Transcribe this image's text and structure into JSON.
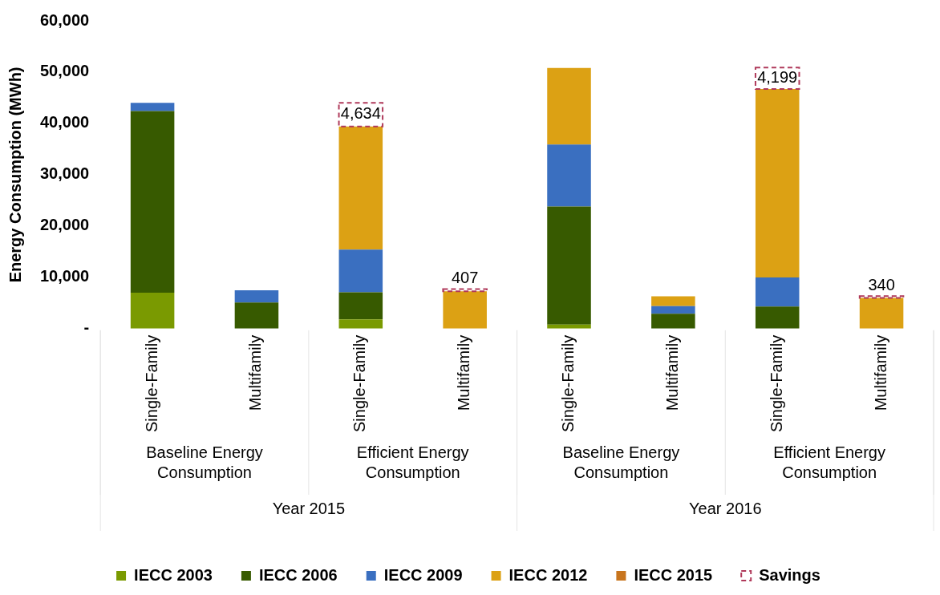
{
  "chart_data": {
    "type": "bar",
    "stacked": true,
    "ylabel": "Energy Consumption (MWh)",
    "categories": [
      "Single-Family",
      "Multifamily",
      "Single-Family",
      "Multifamily",
      "Single-Family",
      "Multifamily",
      "Single-Family",
      "Multifamily"
    ],
    "annotations": [
      "Baseline Energy Consumption",
      "Efficient Energy Consumption",
      "Baseline Energy Consumption",
      "Efficient Energy Consumption",
      "Year 2015",
      "Year 2016"
    ],
    "series": [
      {
        "name": "IECC 2003",
        "color": "#7a9a01",
        "values": [
          7000,
          null,
          1800,
          null,
          800,
          null,
          null,
          null
        ]
      },
      {
        "name": "IECC 2006",
        "color": "#375a00",
        "values": [
          35400,
          5100,
          5300,
          null,
          23000,
          2900,
          4300,
          null
        ]
      },
      {
        "name": "IECC 2009",
        "color": "#3a6fc0",
        "values": [
          1600,
          2400,
          8300,
          null,
          12100,
          1500,
          5700,
          null
        ]
      },
      {
        "name": "IECC 2012",
        "color": "#dca114",
        "values": [
          null,
          null,
          24000,
          7300,
          14900,
          1900,
          36700,
          6000
        ]
      },
      {
        "name": "IECC 2015",
        "color": "#c8751e",
        "values": [
          null,
          null,
          null,
          null,
          null,
          null,
          null,
          null
        ]
      },
      {
        "name": "Savings",
        "color": "#b03a5b",
        "line_style": "dashed",
        "values": [
          null,
          null,
          4634,
          407,
          null,
          null,
          4199,
          340
        ],
        "value_labels": [
          null,
          null,
          "4,634",
          "407",
          null,
          null,
          "4,199",
          "340"
        ]
      }
    ],
    "ylim": [
      0,
      60000
    ],
    "yticks": [
      {
        "value": 0,
        "label": "-"
      },
      {
        "value": 10000,
        "label": "10,000"
      },
      {
        "value": 20000,
        "label": "20,000"
      },
      {
        "value": 30000,
        "label": "30,000"
      },
      {
        "value": 40000,
        "label": "40,000"
      },
      {
        "value": 50000,
        "label": "50,000"
      },
      {
        "value": 60000,
        "label": "60,000"
      }
    ],
    "grid": false,
    "legend": "bottom"
  }
}
